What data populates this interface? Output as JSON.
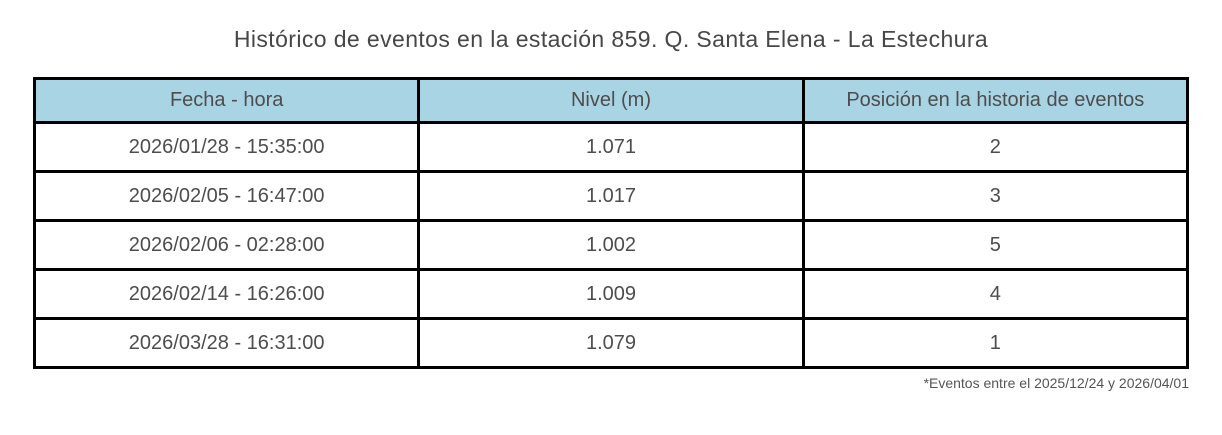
{
  "title": "Histórico de eventos en la estación 859. Q. Santa Elena - La Estechura",
  "footnote": "*Eventos entre el 2025/12/24 y 2026/04/01",
  "colors": {
    "header_bg": "#a9d4e4",
    "border": "#000000",
    "text": "#4d4d4d"
  },
  "chart_data": {
    "type": "table",
    "title": "Histórico de eventos en la estación 859. Q. Santa Elena - La Estechura",
    "columns": [
      "Fecha - hora",
      "Nivel (m)",
      "Posición en la historia de eventos"
    ],
    "rows": [
      [
        "2026/01/28 - 15:35:00",
        "1.071",
        "2"
      ],
      [
        "2026/02/05 - 16:47:00",
        "1.017",
        "3"
      ],
      [
        "2026/02/06 - 02:28:00",
        "1.002",
        "5"
      ],
      [
        "2026/02/14 - 16:26:00",
        "1.009",
        "4"
      ],
      [
        "2026/03/28 - 16:31:00",
        "1.079",
        "1"
      ]
    ],
    "footnote": "*Eventos entre el 2025/12/24 y 2026/04/01",
    "layout": {
      "header_background": "#a9d4e4",
      "grid": "on",
      "columns_equal_width": true
    }
  }
}
